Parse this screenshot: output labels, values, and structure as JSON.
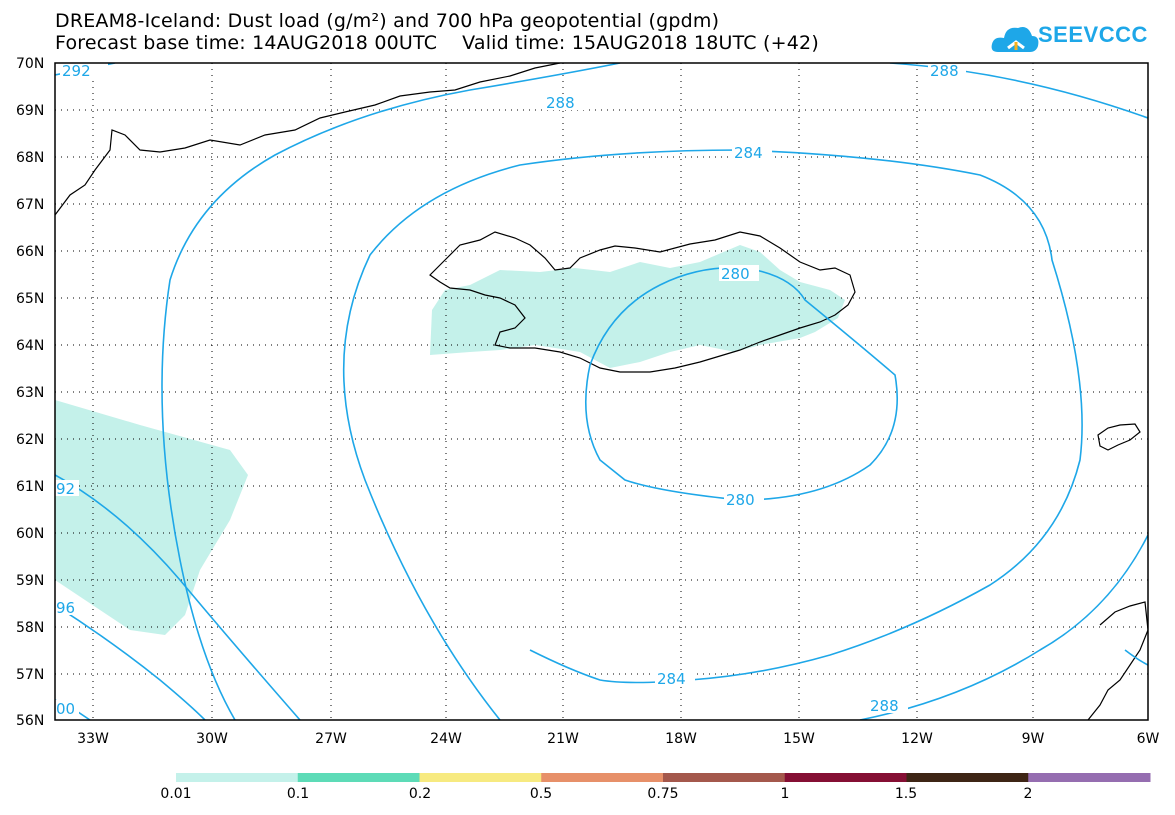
{
  "title": {
    "line1": "DREAM8-Iceland: Dust load (g/m²) and 700 hPa geopotential (gpdm)",
    "line2": "Forecast base time: 14AUG2018 00UTC    Valid time: 15AUG2018 18UTC (+42)"
  },
  "logo": {
    "text": "SEEVCCC",
    "icon": "cloud-icon",
    "color": "#1ea7e8"
  },
  "map": {
    "lat_labels": [
      "70N",
      "69N",
      "68N",
      "67N",
      "66N",
      "65N",
      "64N",
      "63N",
      "62N",
      "61N",
      "60N",
      "59N",
      "58N",
      "57N",
      "56N"
    ],
    "lon_labels": [
      "33W",
      "30W",
      "27W",
      "24W",
      "21W",
      "18W",
      "15W",
      "12W",
      "9W",
      "6W"
    ],
    "contour_color": "#1ea7e8",
    "dust_color": "#c4f1ea",
    "contour_labels": [
      "292",
      "288",
      "288",
      "284",
      "280",
      "280",
      "284",
      "288",
      "92",
      "96",
      "00"
    ]
  },
  "colorbar": {
    "colors": [
      "#c4f1ea",
      "#5ddbb7",
      "#f7ea80",
      "#e79069",
      "#a4584c",
      "#850f34",
      "#3e2515",
      "#956db0"
    ],
    "labels": [
      "0.01",
      "0.1",
      "0.2",
      "0.5",
      "0.75",
      "1",
      "1.5",
      "2"
    ]
  }
}
